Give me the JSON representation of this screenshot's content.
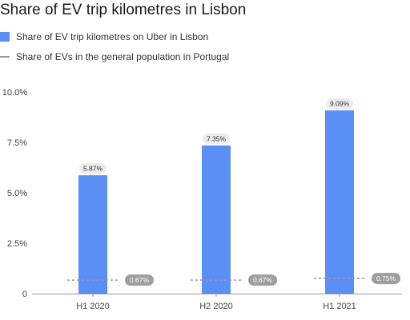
{
  "colors": {
    "bar": "#5a8ff6",
    "reference": "#9a9a9a",
    "bar_label_bg": "#ececec",
    "ref_label_bg": "#9e9e9e",
    "axis": "#999999",
    "grid": "#e6e6e6"
  },
  "chart_data": {
    "type": "bar",
    "title": "Share of EV trip kilometres in Lisbon",
    "xlabel": "",
    "ylabel": "",
    "categories": [
      "H1 2020",
      "H2 2020",
      "H1 2021"
    ],
    "ylim": [
      0,
      10
    ],
    "y_ticks": [
      0,
      2.5,
      5,
      7.5,
      10
    ],
    "y_tick_labels": [
      "0",
      "2.5%",
      "5.0%",
      "7.5%",
      "10.0%"
    ],
    "grid": false,
    "legend_position": "top-left",
    "series": [
      {
        "name": "Share of EV trip kilometres on Uber in Lisbon",
        "style": "bar",
        "values": [
          5.87,
          7.35,
          9.09
        ],
        "labels": [
          "5.87%",
          "7.35%",
          "9.09%"
        ]
      },
      {
        "name": "Share of EVs in the general population in Portugal",
        "style": "dashed-reference",
        "values": [
          0.67,
          0.67,
          0.75
        ],
        "labels": [
          "0.67%",
          "0.67%",
          "0.75%"
        ]
      }
    ]
  }
}
